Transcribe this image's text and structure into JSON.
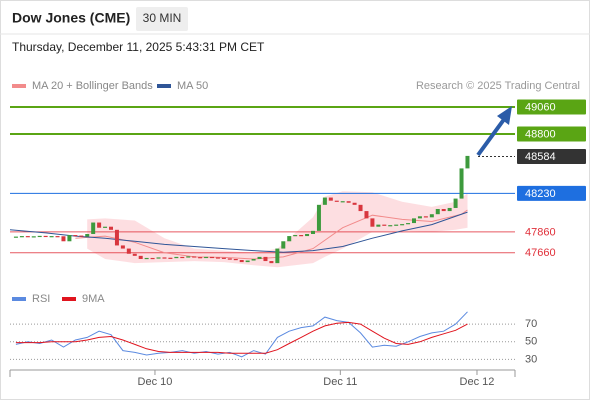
{
  "header": {
    "title": "Dow Jones (CME)",
    "timeframe": "30 MIN",
    "datetime": "Thursday, December 11, 2025 5:43:31 PM CET",
    "source": "Research © 2025 Trading Central"
  },
  "chart_data": [
    {
      "type": "candlestick",
      "xlim": [
        -1,
        84
      ],
      "ylim": [
        47350,
        49175
      ],
      "colors": {
        "up": "#3d9a3d",
        "down": "#d8363e"
      },
      "closes": [
        47815,
        47820,
        47812,
        47818,
        47822,
        47815,
        47820,
        47818,
        47770,
        47830,
        47825,
        47815,
        47840,
        47950,
        47900,
        47910,
        47880,
        47730,
        47700,
        47650,
        47630,
        47600,
        47610,
        47605,
        47615,
        47612,
        47608,
        47620,
        47615,
        47625,
        47618,
        47610,
        47620,
        47615,
        47612,
        47605,
        47600,
        47590,
        47570,
        47585,
        47600,
        47620,
        47580,
        47560,
        47700,
        47770,
        47820,
        47830,
        47820,
        47840,
        47870,
        48120,
        48190,
        48160,
        48150,
        48155,
        48140,
        48120,
        48060,
        47990,
        47910,
        47930,
        47920,
        47925,
        47930,
        47935,
        47945,
        47990,
        48010,
        48000,
        48030,
        48080,
        48060,
        48090,
        48180,
        48470,
        48590
      ],
      "bands": {
        "color": "#fcd3d7",
        "x": [
          12,
          15,
          20,
          25,
          30,
          35,
          40,
          44,
          50,
          52,
          55,
          60,
          65,
          70,
          74,
          76
        ],
        "upper": [
          47980,
          47990,
          47970,
          47800,
          47700,
          47680,
          47660,
          47700,
          48000,
          48200,
          48250,
          48240,
          48150,
          48100,
          48150,
          48230
        ],
        "lower": [
          47700,
          47600,
          47560,
          47570,
          47580,
          47570,
          47540,
          47520,
          47560,
          47620,
          47700,
          47860,
          47870,
          47860,
          47880,
          47900
        ]
      },
      "series": [
        {
          "name": "MA 20 + Bollinger Bands",
          "color": "#f28b8b",
          "x": [
            10,
            15,
            20,
            25,
            30,
            35,
            40,
            45,
            50,
            55,
            60,
            65,
            70,
            75,
            76
          ],
          "values": [
            47800,
            47820,
            47760,
            47660,
            47620,
            47615,
            47600,
            47620,
            47700,
            47900,
            48020,
            47980,
            47960,
            48030,
            48070
          ]
        },
        {
          "name": "MA 50",
          "color": "#2f5597",
          "x": [
            -1,
            5,
            10,
            15,
            20,
            25,
            30,
            35,
            40,
            45,
            50,
            55,
            60,
            65,
            70,
            76
          ],
          "values": [
            47880,
            47850,
            47820,
            47800,
            47770,
            47740,
            47720,
            47700,
            47680,
            47665,
            47680,
            47720,
            47800,
            47870,
            47930,
            48050
          ]
        }
      ],
      "levels": [
        {
          "value": 49060,
          "color": "#5aa514",
          "style": "solid",
          "label_style": "box"
        },
        {
          "value": 48800,
          "color": "#5aa514",
          "style": "solid",
          "label_style": "box"
        },
        {
          "value": 48584,
          "color": "#333333",
          "style": "dotted",
          "label_style": "box"
        },
        {
          "value": 48230,
          "color": "#1e6fe0",
          "style": "solid",
          "label_style": "box"
        },
        {
          "value": 47860,
          "color": "#e0303a",
          "style": "solid",
          "label_style": "text"
        },
        {
          "value": 47660,
          "color": "#e0303a",
          "style": "solid",
          "label_style": "text"
        }
      ]
    },
    {
      "type": "line",
      "xlim": [
        -1,
        84
      ],
      "ylim": [
        18,
        86
      ],
      "yticks": [
        30,
        50,
        70
      ],
      "xticks": [
        {
          "value": 23.4,
          "label": "Dec 10"
        },
        {
          "value": 54.6,
          "label": "Dec 11"
        },
        {
          "value": 77.6,
          "label": "Dec 12"
        }
      ],
      "series": [
        {
          "name": "RSI",
          "color": "#5b8ae0",
          "x": [
            0,
            2,
            4,
            6,
            8,
            10,
            12,
            14,
            16,
            18,
            20,
            22,
            24,
            26,
            28,
            30,
            32,
            34,
            36,
            38,
            40,
            42,
            44,
            46,
            48,
            50,
            52,
            54,
            56,
            58,
            60,
            62,
            64,
            66,
            68,
            70,
            72,
            74,
            76
          ],
          "values": [
            47,
            50,
            48,
            52,
            44,
            52,
            55,
            62,
            58,
            40,
            38,
            35,
            37,
            38,
            40,
            37,
            39,
            36,
            38,
            33,
            40,
            36,
            55,
            62,
            66,
            68,
            78,
            74,
            72,
            60,
            44,
            46,
            45,
            50,
            56,
            60,
            62,
            70,
            84
          ]
        },
        {
          "name": "9MA",
          "color": "#e0141e",
          "x": [
            0,
            2,
            4,
            6,
            8,
            10,
            12,
            14,
            16,
            18,
            20,
            22,
            24,
            26,
            28,
            30,
            32,
            34,
            36,
            38,
            40,
            42,
            44,
            46,
            48,
            50,
            52,
            54,
            56,
            58,
            60,
            62,
            64,
            66,
            68,
            70,
            72,
            74,
            76
          ],
          "values": [
            49,
            49,
            49,
            50,
            50,
            50,
            52,
            55,
            56,
            52,
            47,
            42,
            39,
            38,
            38,
            38,
            38,
            38,
            37,
            37,
            37,
            37,
            41,
            48,
            55,
            62,
            68,
            71,
            72,
            70,
            62,
            54,
            48,
            47,
            50,
            55,
            59,
            63,
            70
          ]
        }
      ]
    }
  ]
}
